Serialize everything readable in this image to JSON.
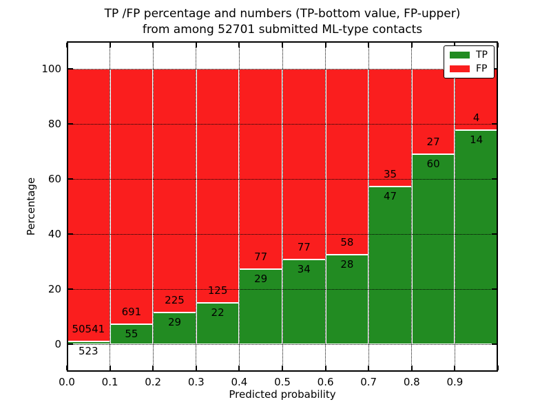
{
  "chart_data": {
    "type": "bar",
    "stacked": true,
    "title_lines": [
      "TP /FP percentage and numbers (TP-bottom value, FP-upper)",
      "from among 52701 submitted ML-type contacts"
    ],
    "xlabel": "Predicted probability",
    "ylabel": "Percentage",
    "total_contacts": 52701,
    "xlim": [
      0.0,
      1.0
    ],
    "ylim": [
      -10,
      110
    ],
    "xtick_labels": [
      "0.0",
      "0.1",
      "0.2",
      "0.3",
      "0.4",
      "0.5",
      "0.6",
      "0.7",
      "0.8",
      "0.9"
    ],
    "ytick_values": [
      0,
      20,
      40,
      60,
      80,
      100
    ],
    "grid": {
      "style": "dotted",
      "color": "#000000"
    },
    "bar_edge_color": "#ffffff",
    "bin_width": 0.1,
    "bins": [
      {
        "range": [
          0.0,
          0.1
        ],
        "tp": 523,
        "fp": 50541,
        "tp_pct": 1.02,
        "fp_pct": 98.98
      },
      {
        "range": [
          0.1,
          0.2
        ],
        "tp": 55,
        "fp": 691,
        "tp_pct": 7.37,
        "fp_pct": 92.63
      },
      {
        "range": [
          0.2,
          0.3
        ],
        "tp": 29,
        "fp": 225,
        "tp_pct": 11.42,
        "fp_pct": 88.58
      },
      {
        "range": [
          0.3,
          0.4
        ],
        "tp": 22,
        "fp": 125,
        "tp_pct": 14.97,
        "fp_pct": 85.03
      },
      {
        "range": [
          0.4,
          0.5
        ],
        "tp": 29,
        "fp": 77,
        "tp_pct": 27.36,
        "fp_pct": 72.64
      },
      {
        "range": [
          0.5,
          0.6
        ],
        "tp": 34,
        "fp": 77,
        "tp_pct": 30.63,
        "fp_pct": 69.37
      },
      {
        "range": [
          0.6,
          0.7
        ],
        "tp": 28,
        "fp": 58,
        "tp_pct": 32.56,
        "fp_pct": 67.44
      },
      {
        "range": [
          0.7,
          0.8
        ],
        "tp": 47,
        "fp": 35,
        "tp_pct": 57.32,
        "fp_pct": 42.68
      },
      {
        "range": [
          0.8,
          0.9
        ],
        "tp": 60,
        "fp": 27,
        "tp_pct": 68.97,
        "fp_pct": 31.03
      },
      {
        "range": [
          0.9,
          1.0
        ],
        "tp": 14,
        "fp": 4,
        "tp_pct": 77.78,
        "fp_pct": 22.22
      }
    ],
    "legend": {
      "position": "upper right",
      "items": [
        {
          "label": "TP",
          "color": "#228B22"
        },
        {
          "label": "FP",
          "color": "#FA1E1E"
        }
      ]
    }
  }
}
